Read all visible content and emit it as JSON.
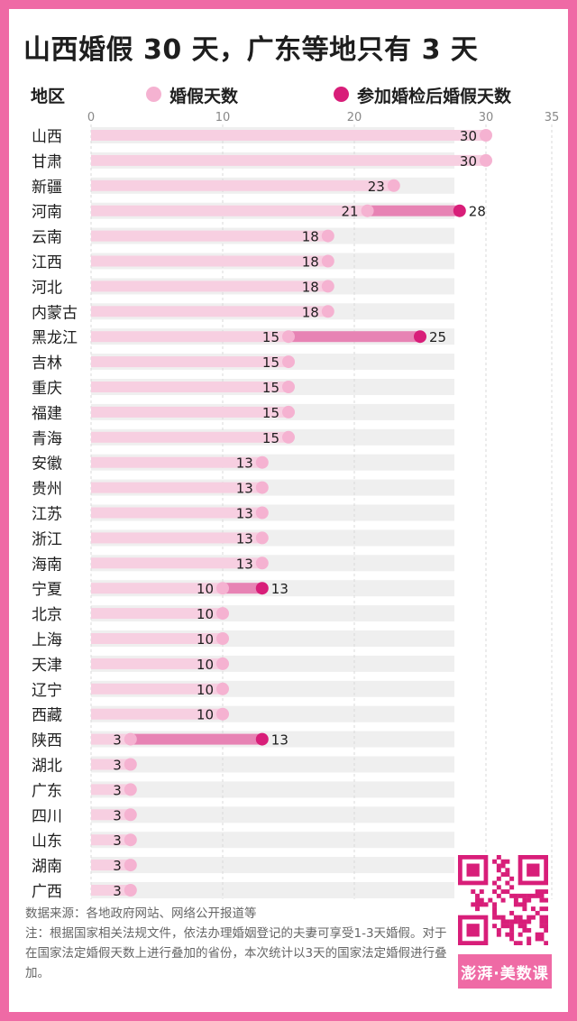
{
  "title": "山西婚假 30 天，广东等地只有 3 天",
  "legend": {
    "region_header": "地区",
    "base_label": "婚假天数",
    "extra_label": "参加婚检后婚假天数"
  },
  "colors": {
    "background": "#ef6aa5",
    "band": "#efefef",
    "bar": "#f7cfe1",
    "base_dot": "#f5b2d1",
    "range": "#e783b4",
    "extra_dot": "#d81e79",
    "gridline": "#dadada"
  },
  "chart_data": {
    "type": "bar",
    "xlim": [
      0,
      35
    ],
    "x_ticks": [
      0,
      10,
      20,
      30,
      35
    ],
    "grid": true,
    "legend_position": "top",
    "categories": [
      "山西",
      "甘肃",
      "新疆",
      "河南",
      "云南",
      "江西",
      "河北",
      "内蒙古",
      "黑龙江",
      "吉林",
      "重庆",
      "福建",
      "青海",
      "安徽",
      "贵州",
      "江苏",
      "浙江",
      "海南",
      "宁夏",
      "北京",
      "上海",
      "天津",
      "辽宁",
      "西藏",
      "陕西",
      "湖北",
      "广东",
      "四川",
      "山东",
      "湖南",
      "广西"
    ],
    "series": [
      {
        "name": "婚假天数",
        "values": [
          30,
          30,
          23,
          21,
          18,
          18,
          18,
          18,
          15,
          15,
          15,
          15,
          15,
          13,
          13,
          13,
          13,
          13,
          10,
          10,
          10,
          10,
          10,
          10,
          3,
          3,
          3,
          3,
          3,
          3,
          3
        ]
      },
      {
        "name": "参加婚检后婚假天数",
        "values": [
          null,
          null,
          null,
          28,
          null,
          null,
          null,
          null,
          25,
          null,
          null,
          null,
          null,
          null,
          null,
          null,
          null,
          null,
          13,
          null,
          null,
          null,
          null,
          null,
          13,
          null,
          null,
          null,
          null,
          null,
          null
        ]
      }
    ]
  },
  "footer": {
    "source": "数据来源：各地政府网站、网络公开报道等",
    "note": "注：根据国家相关法规文件，依法办理婚姻登记的夫妻可享受1-3天婚假。对于在国家法定婚假天数上进行叠加的省份，本次统计以3天的国家法定婚假进行叠加。"
  },
  "brand": {
    "qr_icon": "qr-code-icon",
    "label": "澎湃·美数课"
  }
}
